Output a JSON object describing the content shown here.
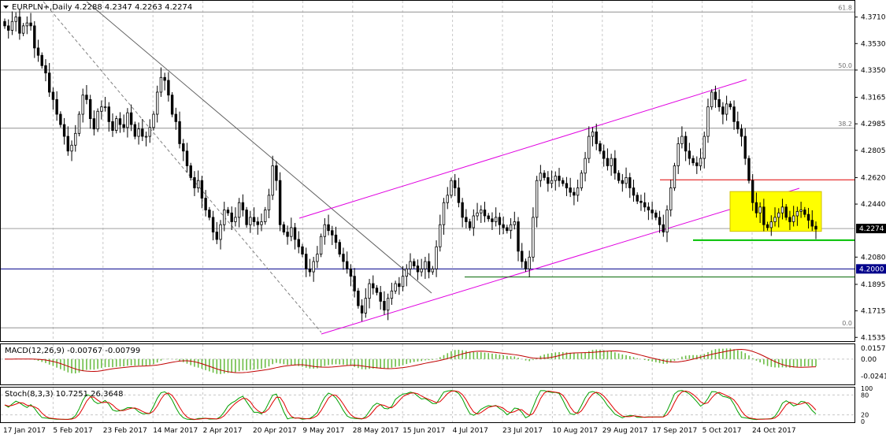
{
  "header": {
    "symbol": "EURPLN+",
    "timeframe": "Daily",
    "ohlc": "4.2288 4.2347 4.2263 4.2274"
  },
  "colors": {
    "background": "#ffffff",
    "grid": "#c8c8c8",
    "candle": "#000000",
    "channel": "#e000e0",
    "resistance": "#e00000",
    "support": "#00c000",
    "support_dark": "#006400",
    "box": "#ffff00",
    "price_tag": "#000000",
    "level_tag": "#00008b",
    "macd_hist": "#6cbd45",
    "macd_signal": "#c00000",
    "stoch_main": "#00a000",
    "stoch_signal": "#e00000"
  },
  "price_axis": {
    "ticks": [
      "4.3710",
      "4.3530",
      "4.3350",
      "4.3165",
      "4.2985",
      "4.2805",
      "4.2620",
      "4.2440",
      "4.2080",
      "4.1895",
      "4.1715",
      "4.1535"
    ],
    "current_tag": "4.2274",
    "level_tag": "4.2000"
  },
  "fibonacci": {
    "levels": [
      {
        "label": "61.8",
        "price": 4.3744
      },
      {
        "label": "50.0",
        "price": 4.335
      },
      {
        "label": "38.2",
        "price": 4.2955
      },
      {
        "label": "0.0",
        "price": 4.16
      }
    ]
  },
  "x_axis": {
    "dates": [
      "17 Jan 2017",
      "5 Feb 2017",
      "23 Feb 2017",
      "14 Mar 2017",
      "2 Apr 2017",
      "20 Apr 2017",
      "9 May 2017",
      "28 May 2017",
      "15 Jun 2017",
      "4 Jul 2017",
      "23 Jul 2017",
      "10 Aug 2017",
      "29 Aug 2017",
      "17 Sep 2017",
      "5 Oct 2017",
      "24 Oct 2017"
    ]
  },
  "macd": {
    "label": "MACD(12,26,9) -0.00767 -0.00799",
    "ticks": [
      "0.01571",
      "0.00",
      "-0.02413"
    ]
  },
  "stoch": {
    "label": "Stoch(8,3,3) 10.7251 26.3648",
    "ticks": [
      "100",
      "80",
      "20",
      "0"
    ]
  },
  "chart_data": {
    "type": "candlestick",
    "series": [
      {
        "name": "EURPLN+",
        "close": [
          4.365,
          4.362,
          4.368,
          4.371,
          4.36,
          4.365,
          4.367,
          4.365,
          4.35,
          4.345,
          4.338,
          4.333,
          4.32,
          4.315,
          4.305,
          4.298,
          4.29,
          4.28,
          4.284,
          4.292,
          4.305,
          4.318,
          4.315,
          4.302,
          4.295,
          4.307,
          4.31,
          4.31,
          4.3,
          4.294,
          4.302,
          4.298,
          4.296,
          4.306,
          4.298,
          4.29,
          4.295,
          4.29,
          4.29,
          4.296,
          4.305,
          4.32,
          4.33,
          4.328,
          4.318,
          4.305,
          4.3,
          4.285,
          4.28,
          4.27,
          4.262,
          4.255,
          4.26,
          4.248,
          4.24,
          4.235,
          4.225,
          4.22,
          4.23,
          4.24,
          4.238,
          4.232,
          4.235,
          4.245,
          4.24,
          4.23,
          4.235,
          4.232,
          4.23,
          4.232,
          4.24,
          4.25,
          4.27,
          4.26,
          4.23,
          4.225,
          4.222,
          4.228,
          4.22,
          4.215,
          4.21,
          4.2,
          4.198,
          4.205,
          4.21,
          4.222,
          4.23,
          4.226,
          4.223,
          4.218,
          4.21,
          4.205,
          4.2,
          4.195,
          4.185,
          4.175,
          4.17,
          4.18,
          4.19,
          4.187,
          4.184,
          4.178,
          4.172,
          4.18,
          4.185,
          4.19,
          4.188,
          4.195,
          4.2,
          4.205,
          4.202,
          4.198,
          4.2,
          4.205,
          4.198,
          4.2,
          4.215,
          4.23,
          4.245,
          4.25,
          4.26,
          4.255,
          4.245,
          4.235,
          4.232,
          4.228,
          4.236,
          4.238,
          4.24,
          4.236,
          4.234,
          4.232,
          4.235,
          4.23,
          4.228,
          4.226,
          4.23,
          4.232,
          4.212,
          4.205,
          4.2,
          4.208,
          4.235,
          4.26,
          4.265,
          4.262,
          4.258,
          4.26,
          4.263,
          4.26,
          4.258,
          4.255,
          4.252,
          4.25,
          4.255,
          4.265,
          4.275,
          4.29,
          4.293,
          4.285,
          4.28,
          4.275,
          4.27,
          4.275,
          4.265,
          4.26,
          4.258,
          4.262,
          4.255,
          4.25,
          4.246,
          4.245,
          4.242,
          4.24,
          4.238,
          4.235,
          4.23,
          4.225,
          4.24,
          4.255,
          4.27,
          4.285,
          4.29,
          4.28,
          4.275,
          4.272,
          4.27,
          4.275,
          4.29,
          4.31,
          4.32,
          4.315,
          4.31,
          4.305,
          4.312,
          4.31,
          4.3,
          4.295,
          4.29,
          4.275,
          4.26,
          4.245,
          4.238,
          4.242,
          4.23,
          4.228,
          4.232,
          4.235,
          4.238,
          4.242,
          4.235,
          4.232,
          4.236,
          4.239,
          4.24,
          4.237,
          4.233,
          4.229,
          4.227
        ]
      }
    ],
    "resistance_price": 4.2605,
    "support_price": 4.2195,
    "support2_price": 4.1945,
    "horizontal_level": 4.2,
    "ylim": [
      4.1515,
      4.3815
    ],
    "macd_ylim": [
      -0.035,
      0.02
    ],
    "stoch_ylim": [
      0,
      100
    ],
    "grid": true
  }
}
